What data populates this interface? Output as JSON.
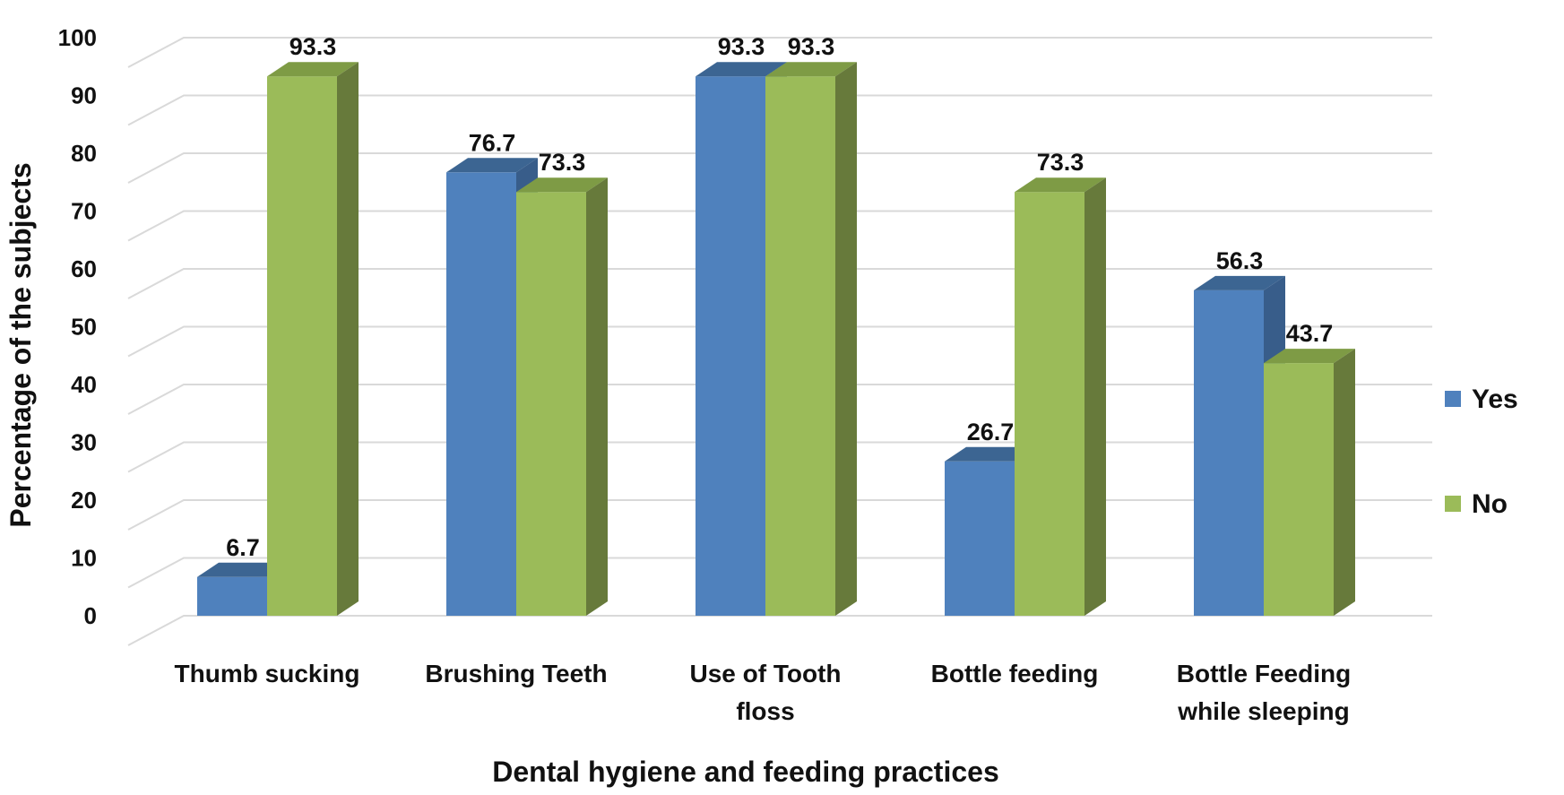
{
  "chart_data": {
    "type": "bar",
    "title": "",
    "xlabel": "Dental hygiene and feeding practices",
    "ylabel": "Percentage of the subjects",
    "ylim": [
      0,
      100
    ],
    "yticks": [
      0,
      10,
      20,
      30,
      40,
      50,
      60,
      70,
      80,
      90,
      100
    ],
    "grid": true,
    "legend_position": "right",
    "categories": [
      [
        "Thumb sucking"
      ],
      [
        "Brushing Teeth"
      ],
      [
        "Use of Tooth",
        "floss"
      ],
      [
        "Bottle feeding"
      ],
      [
        "Bottle Feeding",
        "while sleeping"
      ]
    ],
    "series": [
      {
        "name": "Yes",
        "values": [
          6.7,
          76.7,
          93.3,
          26.7,
          56.3
        ],
        "color": "#4F81BD",
        "top_color": "#3C6592",
        "side_color": "#385D8A"
      },
      {
        "name": "No",
        "values": [
          93.3,
          73.3,
          93.3,
          73.3,
          43.7
        ],
        "color": "#9BBB59",
        "top_color": "#7E9B45",
        "side_color": "#677A3B"
      }
    ],
    "data_labels": [
      [
        "6.7",
        "76.7",
        "93.3",
        "26.7",
        "56.3"
      ],
      [
        "93.3",
        "73.3",
        "93.3",
        "73.3",
        "43.7"
      ]
    ],
    "grid_color": "#D9D9D9"
  }
}
